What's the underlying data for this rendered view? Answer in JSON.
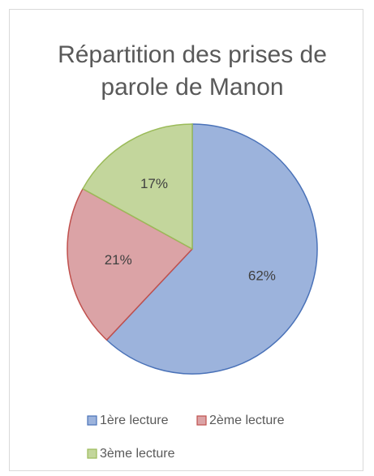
{
  "chart_data": {
    "type": "pie",
    "title": "Répartition des prises de parole de Manon",
    "categories": [
      "1ère lecture",
      "2ème lecture",
      "3ème lecture"
    ],
    "values": [
      62,
      21,
      17
    ],
    "value_labels": [
      "62%",
      "21%",
      "17%"
    ],
    "colors": [
      "#9cb3dc",
      "#dba3a6",
      "#c3d69c"
    ],
    "edge_colors": [
      "#4a72b8",
      "#c0504d",
      "#9bbb59"
    ],
    "legend": "bottom"
  }
}
